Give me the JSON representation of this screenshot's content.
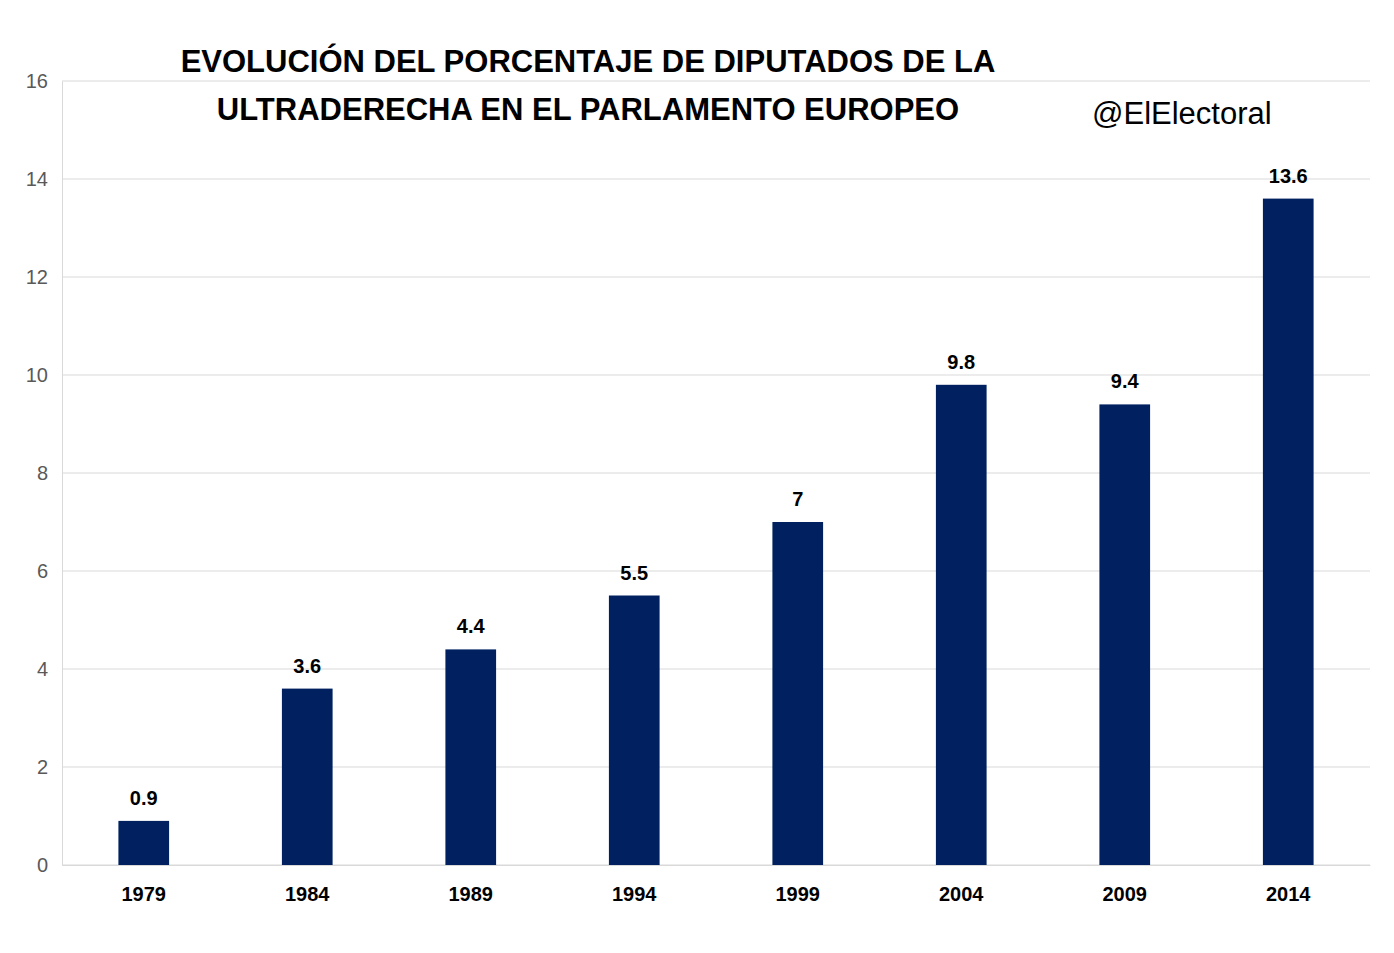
{
  "chart_data": {
    "type": "bar",
    "title": "EVOLUCIÓN DEL PORCENTAJE DE DIPUTADOS DE LA ULTRADERECHA EN EL PARLAMENTO EUROPEO",
    "annotations": [
      "@ElElectoral"
    ],
    "categories": [
      "1979",
      "1984",
      "1989",
      "1994",
      "1999",
      "2004",
      "2009",
      "2014"
    ],
    "values": [
      0.9,
      3.6,
      4.4,
      5.5,
      7,
      9.8,
      9.4,
      13.6
    ],
    "color": "#002060",
    "ylim": [
      0,
      16
    ],
    "yticks": [
      0,
      2,
      4,
      6,
      8,
      10,
      12,
      14,
      16
    ],
    "grid": true,
    "data_labels": true
  }
}
